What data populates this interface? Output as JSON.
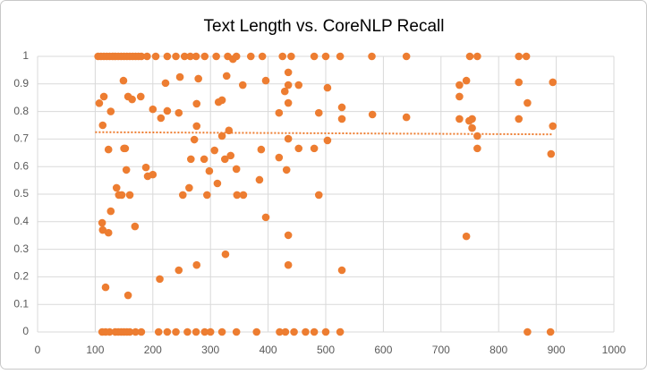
{
  "chart_data": {
    "type": "scatter",
    "title": "Text Length vs. CoreNLP Recall",
    "series": [
      {
        "color": "#ed7d31",
        "x": [
          105,
          110,
          115,
          120,
          125,
          130,
          135,
          140,
          145,
          150,
          155,
          160,
          165,
          170,
          175,
          180,
          190,
          205,
          225,
          240,
          255,
          265,
          275,
          290,
          310,
          330,
          345,
          370,
          390,
          425,
          440,
          480,
          500,
          525,
          580,
          640,
          750,
          763,
          835,
          848,
          112,
          118,
          125,
          135,
          140,
          145,
          150,
          155,
          160,
          170,
          180,
          210,
          225,
          240,
          260,
          275,
          290,
          345,
          380,
          420,
          430,
          445,
          480,
          500,
          525,
          850,
          890,
          300,
          320,
          465,
          107,
          115,
          113,
          127,
          123,
          137,
          141,
          146,
          150,
          152,
          154,
          157,
          160,
          164,
          157,
          118,
          112,
          113,
          123,
          127,
          169,
          179,
          149,
          188,
          191,
          200,
          200,
          214,
          222,
          225,
          212,
          247,
          245,
          252,
          245,
          263,
          266,
          272,
          276,
          279,
          276,
          276,
          289,
          294,
          298,
          307,
          312,
          314,
          320,
          320,
          325,
          328,
          332,
          335,
          326,
          345,
          346,
          357,
          356,
          339,
          385,
          388,
          396,
          396,
          419,
          419,
          429,
          432,
          435,
          435,
          435,
          435,
          435,
          435,
          453,
          453,
          480,
          488,
          488,
          503,
          503,
          528,
          528,
          528,
          581,
          640,
          732,
          732,
          732,
          744,
          744,
          749,
          754,
          754,
          763,
          763,
          835,
          835,
          850,
          894,
          894,
          891
        ],
        "values": [
          1,
          1,
          1,
          1,
          1,
          1,
          1,
          1,
          1,
          1,
          1,
          1,
          1,
          1,
          1,
          1,
          1,
          1,
          1,
          1,
          1,
          1,
          1,
          1,
          1,
          1,
          1,
          1,
          1,
          1,
          1,
          1,
          1,
          1,
          1,
          1,
          1,
          1,
          1,
          1,
          0,
          0,
          0,
          0,
          0,
          0,
          0,
          0,
          0,
          0,
          0,
          0,
          0,
          0,
          0,
          0,
          0,
          0,
          0,
          0,
          0,
          0,
          0,
          0,
          0,
          0,
          0,
          0,
          0,
          0,
          0.83,
          0.854,
          0.75,
          0.8,
          0.662,
          0.523,
          0.497,
          0.497,
          0.666,
          0.666,
          0.588,
          0.854,
          0.497,
          0.844,
          0.133,
          0.162,
          0.396,
          0.37,
          0.36,
          0.438,
          0.383,
          0.854,
          0.912,
          0.597,
          0.565,
          0.808,
          0.571,
          0.776,
          0.903,
          0.802,
          0.192,
          0.925,
          0.795,
          0.497,
          0.224,
          0.523,
          0.627,
          0.698,
          0.828,
          0.919,
          0.747,
          0.243,
          0.627,
          0.497,
          0.584,
          0.659,
          0.539,
          0.834,
          0.841,
          0.711,
          0.627,
          0.929,
          0.731,
          0.64,
          0.282,
          0.591,
          0.497,
          0.497,
          0.896,
          0.99,
          0.552,
          0.662,
          0.416,
          0.912,
          0.795,
          0.633,
          0.873,
          0.588,
          0.831,
          0.942,
          0.896,
          0.701,
          0.351,
          0.243,
          0.896,
          0.666,
          0.666,
          0.795,
          0.497,
          0.886,
          0.695,
          0.815,
          0.773,
          0.224,
          0.789,
          0.779,
          0.896,
          0.854,
          0.773,
          0.912,
          0.347,
          0.766,
          0.773,
          0.74,
          0.711,
          0.666,
          0.906,
          0.773,
          0.831,
          0.906,
          0.747,
          0.646
        ]
      }
    ],
    "trendline": {
      "x": [
        100,
        894
      ],
      "values": [
        0.725,
        0.717
      ],
      "color": "#ed7d31"
    },
    "xlim": [
      0,
      1000
    ],
    "xticks": [
      0,
      100,
      200,
      300,
      400,
      500,
      600,
      700,
      800,
      900,
      1000
    ],
    "ylim": [
      0,
      1
    ],
    "yticks": [
      0,
      0.1,
      0.2,
      0.3,
      0.4,
      0.5,
      0.6,
      0.7,
      0.8,
      0.9,
      1
    ],
    "grid": true
  }
}
